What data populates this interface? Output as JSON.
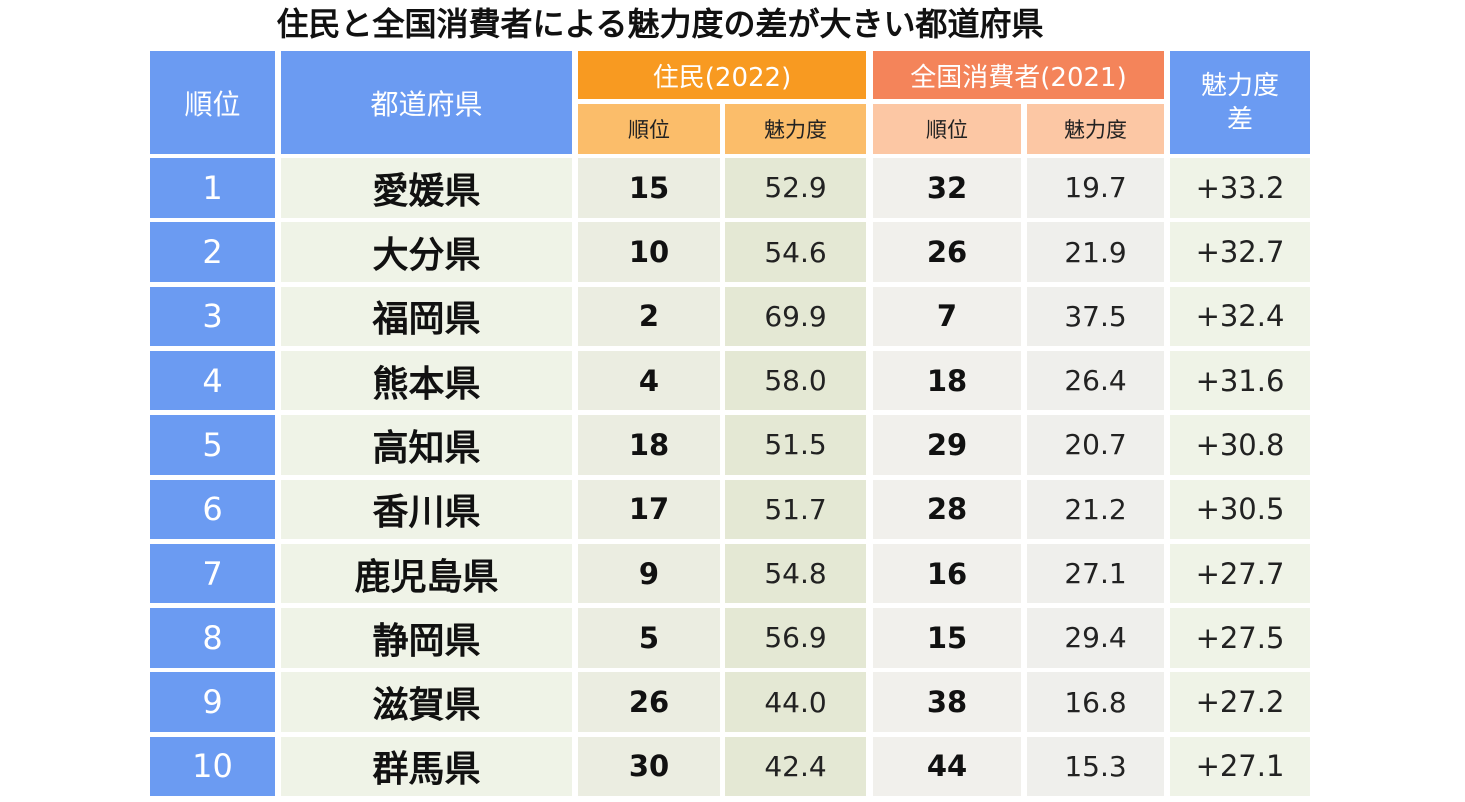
{
  "chart_data": {
    "type": "table",
    "title": "住民と全国消費者による魅力度の差が大きい都道府県",
    "headers": {
      "rank": "順位",
      "prefecture": "都道府県",
      "residents_group": "住民(2022)",
      "national_group": "全国消費者(2021)",
      "sub_rank": "順位",
      "sub_score": "魅力度",
      "diff_line1": "魅力度",
      "diff_line2": "差"
    },
    "rows": [
      {
        "rank": "1",
        "prefecture": "愛媛県",
        "res_rank": "15",
        "res_score": "52.9",
        "nat_rank": "32",
        "nat_score": "19.7",
        "diff": "+33.2"
      },
      {
        "rank": "2",
        "prefecture": "大分県",
        "res_rank": "10",
        "res_score": "54.6",
        "nat_rank": "26",
        "nat_score": "21.9",
        "diff": "+32.7"
      },
      {
        "rank": "3",
        "prefecture": "福岡県",
        "res_rank": "2",
        "res_score": "69.9",
        "nat_rank": "7",
        "nat_score": "37.5",
        "diff": "+32.4"
      },
      {
        "rank": "4",
        "prefecture": "熊本県",
        "res_rank": "4",
        "res_score": "58.0",
        "nat_rank": "18",
        "nat_score": "26.4",
        "diff": "+31.6"
      },
      {
        "rank": "5",
        "prefecture": "高知県",
        "res_rank": "18",
        "res_score": "51.5",
        "nat_rank": "29",
        "nat_score": "20.7",
        "diff": "+30.8"
      },
      {
        "rank": "6",
        "prefecture": "香川県",
        "res_rank": "17",
        "res_score": "51.7",
        "nat_rank": "28",
        "nat_score": "21.2",
        "diff": "+30.5"
      },
      {
        "rank": "7",
        "prefecture": "鹿児島県",
        "res_rank": "9",
        "res_score": "54.8",
        "nat_rank": "16",
        "nat_score": "27.1",
        "diff": "+27.7"
      },
      {
        "rank": "8",
        "prefecture": "静岡県",
        "res_rank": "5",
        "res_score": "56.9",
        "nat_rank": "15",
        "nat_score": "29.4",
        "diff": "+27.5"
      },
      {
        "rank": "9",
        "prefecture": "滋賀県",
        "res_rank": "26",
        "res_score": "44.0",
        "nat_rank": "38",
        "nat_score": "16.8",
        "diff": "+27.2"
      },
      {
        "rank": "10",
        "prefecture": "群馬県",
        "res_rank": "30",
        "res_score": "42.4",
        "nat_rank": "44",
        "nat_score": "15.3",
        "diff": "+27.1"
      }
    ]
  },
  "colors": {
    "header_blue": "#6b9bf2",
    "residents_orange": "#f89a21",
    "national_orange": "#f4845a",
    "residents_sub": "#fbbd6a",
    "national_sub": "#fcc7a4"
  }
}
